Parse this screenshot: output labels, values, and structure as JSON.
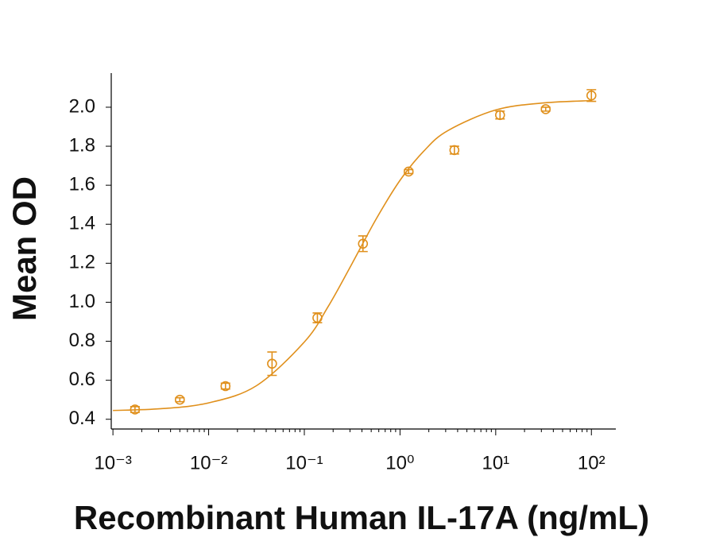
{
  "chart_data": {
    "type": "scatter",
    "x_label": "Recombinant Human IL-17A (ng/mL)",
    "y_label": "Mean OD",
    "x_log": true,
    "color": "#e0901c",
    "xlim": [
      0.00096,
      180
    ],
    "ylim": [
      0.35,
      2.175
    ],
    "xticks": [
      {
        "value": 0.001,
        "label": "10⁻³"
      },
      {
        "value": 0.01,
        "label": "10⁻²"
      },
      {
        "value": 0.1,
        "label": "10⁻¹"
      },
      {
        "value": 1,
        "label": "10⁰"
      },
      {
        "value": 10,
        "label": "10¹"
      },
      {
        "value": 100,
        "label": "10²"
      }
    ],
    "xminorticks": [
      0.002,
      0.003,
      0.004,
      0.005,
      0.006,
      0.007,
      0.008,
      0.009,
      0.02,
      0.03,
      0.04,
      0.05,
      0.06,
      0.07,
      0.08,
      0.09,
      0.2,
      0.3,
      0.4,
      0.5,
      0.6,
      0.7,
      0.8,
      0.9,
      2,
      3,
      4,
      5,
      6,
      7,
      8,
      9,
      20,
      30,
      40,
      50,
      60,
      70,
      80,
      90
    ],
    "yticks": [
      0.4,
      0.6,
      0.8,
      {
        "value": 1,
        "label": "1.0"
      },
      1.2,
      1.4,
      1.6,
      1.8,
      {
        "value": 2,
        "label": "2.0"
      }
    ],
    "x": [
      0.0017,
      0.005,
      0.015,
      0.046,
      0.137,
      0.41,
      1.23,
      3.7,
      11.1,
      33.3,
      100
    ],
    "values": [
      0.45,
      0.5,
      0.57,
      0.685,
      0.92,
      1.3,
      1.67,
      1.78,
      1.96,
      1.99,
      2.06
    ],
    "errors": [
      0.015,
      0.01,
      0.015,
      0.06,
      0.025,
      0.04,
      0.01,
      0.02,
      0.02,
      0.01,
      0.03
    ],
    "curve": {
      "x": [
        0.001,
        0.00316,
        0.01,
        0.0316,
        0.1,
        0.178,
        0.316,
        0.562,
        1,
        1.78,
        3.16,
        10,
        31.6,
        100
      ],
      "values": [
        0.445,
        0.454,
        0.484,
        0.572,
        0.796,
        0.979,
        1.199,
        1.426,
        1.625,
        1.776,
        1.88,
        1.986,
        2.022,
        2.034
      ]
    }
  }
}
